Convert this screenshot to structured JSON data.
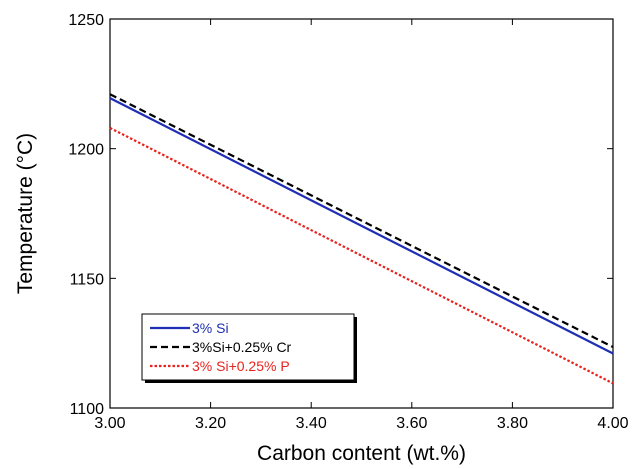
{
  "chart_data": {
    "type": "line",
    "title": "",
    "xlabel": "Carbon content (wt.%)",
    "ylabel": "Temperature (°C)",
    "xlim": [
      3.0,
      4.0
    ],
    "ylim": [
      1100,
      1250
    ],
    "x_ticks": [
      3.0,
      3.2,
      3.4,
      3.6,
      3.8,
      4.0
    ],
    "x_tick_labels": [
      "3.00",
      "3.20",
      "3.40",
      "3.60",
      "3.80",
      "4.00"
    ],
    "y_ticks": [
      1100,
      1150,
      1200,
      1250
    ],
    "y_tick_labels": [
      "1100",
      "1150",
      "1200",
      "1250"
    ],
    "grid": false,
    "legend_position": "lower-left",
    "series": [
      {
        "name": "3% Si",
        "x": [
          3.0,
          4.0
        ],
        "y": [
          1219.5,
          1121.0
        ],
        "color": "#1f2fb5",
        "dash": "solid"
      },
      {
        "name": "3%Si+0.25% Cr",
        "x": [
          3.0,
          4.0
        ],
        "y": [
          1221.0,
          1123.5
        ],
        "color": "#000000",
        "dash": "dashed"
      },
      {
        "name": "3% Si+0.25% P",
        "x": [
          3.0,
          4.0
        ],
        "y": [
          1208.0,
          1109.5
        ],
        "color": "#e8231e",
        "dash": "dotted"
      }
    ]
  }
}
